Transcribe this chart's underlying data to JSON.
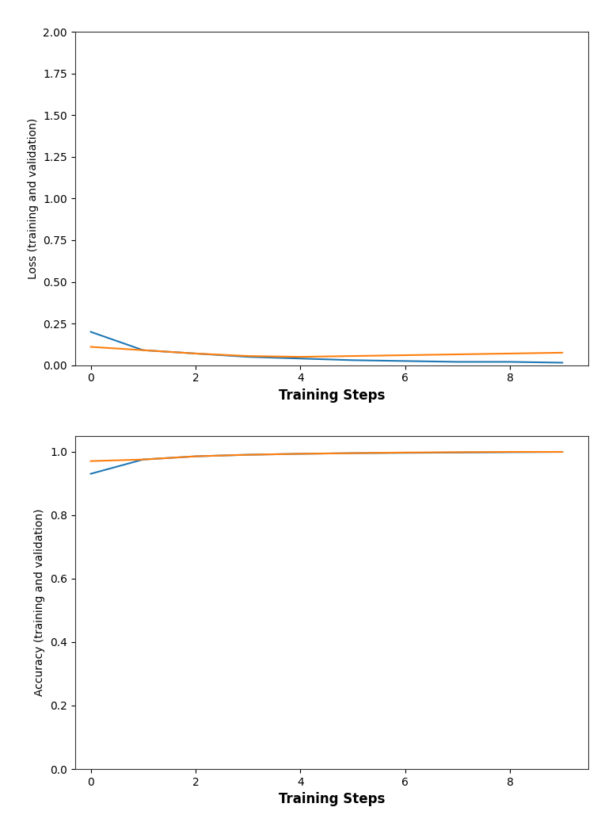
{
  "loss_steps": [
    0,
    1,
    2,
    3,
    4,
    5,
    6,
    7,
    8,
    9
  ],
  "loss_train": [
    0.2,
    0.09,
    0.07,
    0.05,
    0.04,
    0.03,
    0.025,
    0.02,
    0.02,
    0.015
  ],
  "loss_val": [
    0.11,
    0.09,
    0.07,
    0.055,
    0.05,
    0.055,
    0.06,
    0.065,
    0.07,
    0.075
  ],
  "acc_steps": [
    0,
    1,
    2,
    3,
    4,
    5,
    6,
    7,
    8,
    9
  ],
  "acc_train": [
    0.93,
    0.975,
    0.985,
    0.99,
    0.993,
    0.995,
    0.996,
    0.997,
    0.998,
    0.999
  ],
  "acc_val": [
    0.97,
    0.975,
    0.985,
    0.99,
    0.993,
    0.995,
    0.997,
    0.998,
    0.999,
    0.999
  ],
  "loss_ylim": [
    0.0,
    2.0
  ],
  "loss_yticks": [
    0.0,
    0.25,
    0.5,
    0.75,
    1.0,
    1.25,
    1.5,
    1.75,
    2.0
  ],
  "acc_ylim": [
    0.0,
    1.05
  ],
  "acc_yticks": [
    0.0,
    0.2,
    0.4,
    0.6,
    0.8,
    1.0
  ],
  "xlim": [
    -0.3,
    9.5
  ],
  "xticks": [
    0,
    2,
    4,
    6,
    8
  ],
  "xlabel": "Training Steps",
  "loss_ylabel": "Loss (training and validation)",
  "acc_ylabel": "Accuracy (training and validation)",
  "color_train": "#1f77b4",
  "color_val": "#ff7f0e",
  "linewidth": 1.5,
  "plot_bg": "#ffffff",
  "figure_bg": "#ffffff",
  "tick_fontsize": 10,
  "label_fontsize": 12
}
